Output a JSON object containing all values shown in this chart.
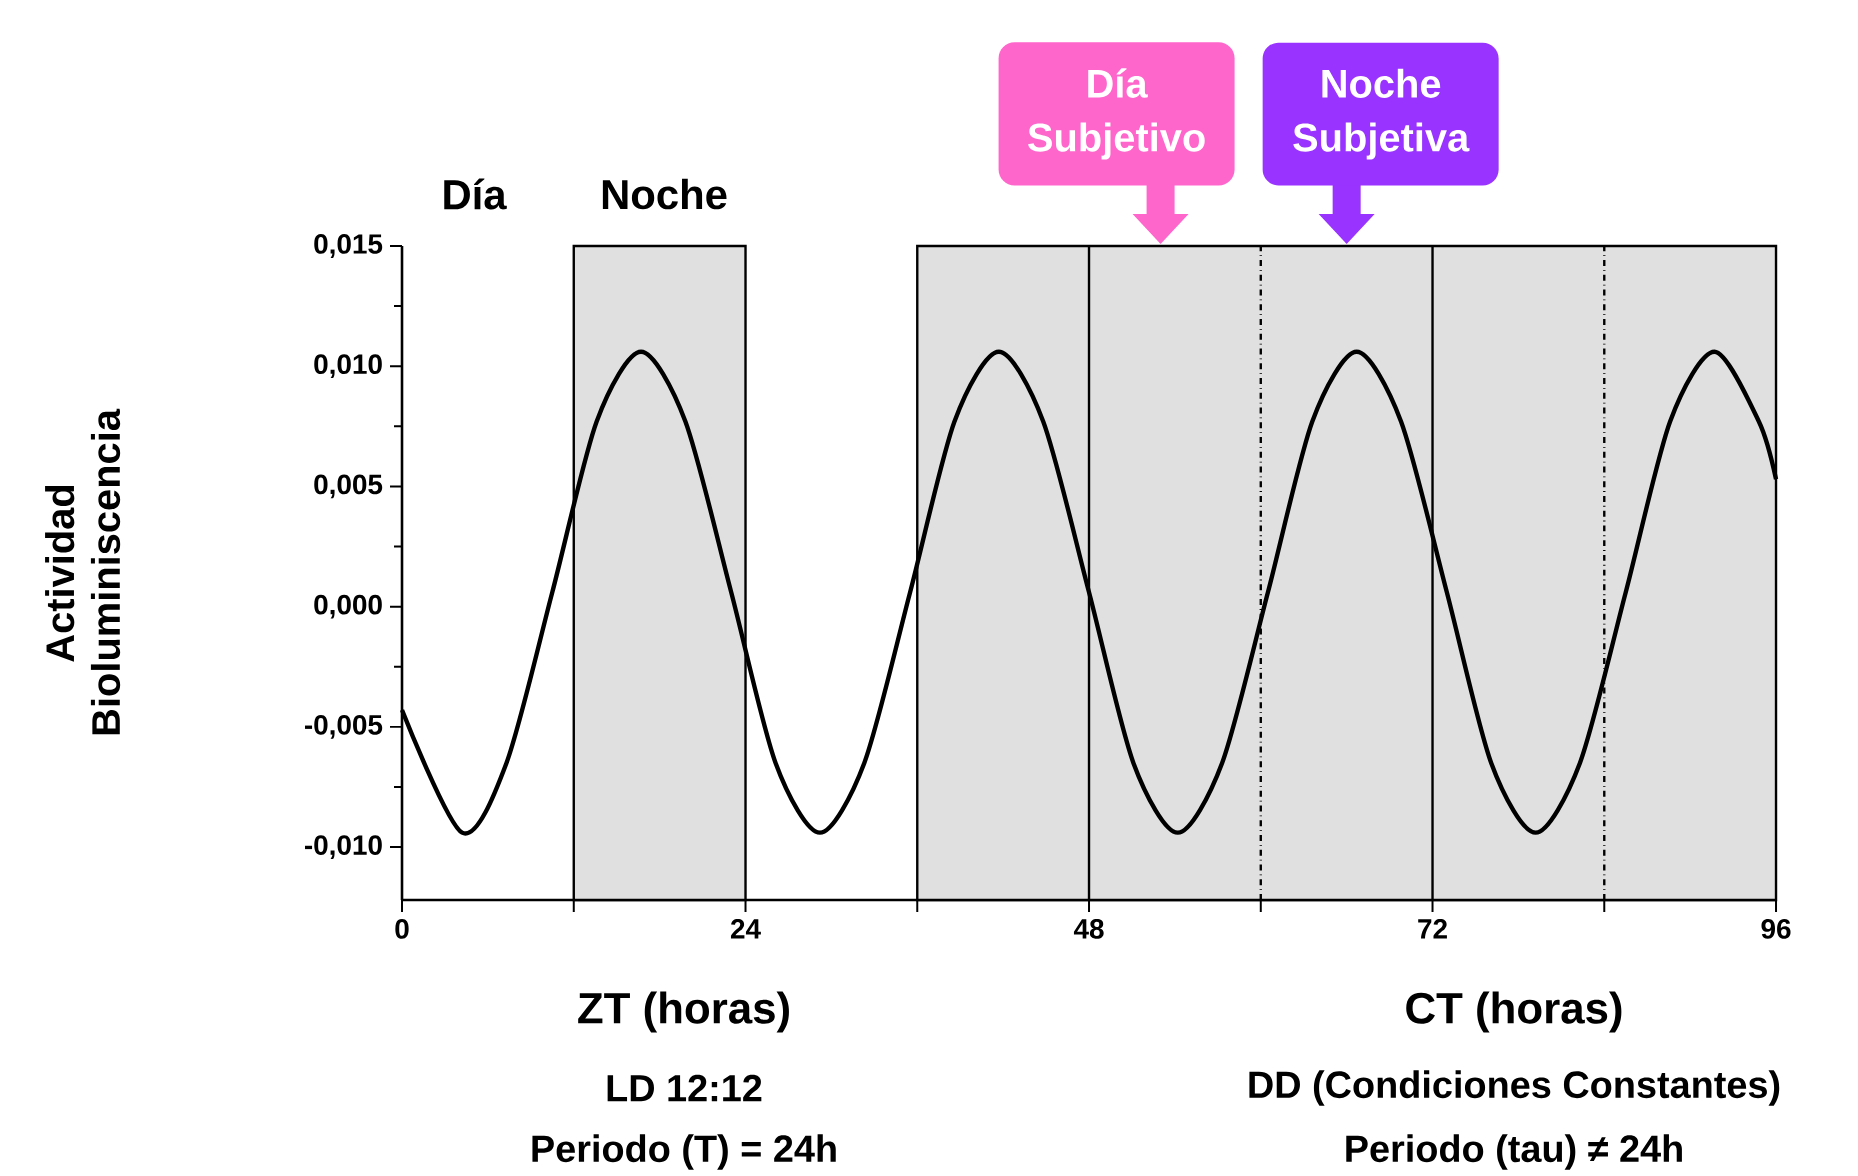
{
  "chart_data": {
    "type": "line",
    "ylabel": "Actividad Bioluminiscencia",
    "x": [
      0,
      4.2,
      7.3,
      10.5,
      13.6,
      16.7,
      19.8,
      23.0,
      26.1,
      29.2,
      32.3,
      35.5,
      38.6,
      41.7,
      44.8,
      48.0,
      51.1,
      54.2,
      57.3,
      60.5,
      63.6,
      66.7,
      69.8,
      73.0,
      76.1,
      79.2,
      82.3,
      85.5,
      88.6,
      91.7,
      94.8,
      96
    ],
    "series": [
      {
        "color": "#000000",
        "values": [
          -0.0043,
          -0.0094,
          -0.0065,
          0.0006,
          0.0077,
          0.0106,
          0.0077,
          0.0006,
          -0.0065,
          -0.0094,
          -0.0065,
          0.0006,
          0.0077,
          0.0106,
          0.0077,
          0.0006,
          -0.0065,
          -0.0094,
          -0.0065,
          0.0006,
          0.0077,
          0.0106,
          0.0077,
          0.0006,
          -0.0065,
          -0.0094,
          -0.0065,
          0.0006,
          0.0077,
          0.0106,
          0.0077,
          0.0053
        ]
      }
    ],
    "xlim": [
      0,
      96
    ],
    "ylim": [
      -0.0122,
      0.015
    ],
    "xticks": [
      0,
      {
        "value": 12,
        "label": null
      },
      24,
      {
        "value": 36,
        "label": null
      },
      48,
      {
        "value": 60,
        "label": null
      },
      72,
      {
        "value": 84,
        "label": null
      },
      96
    ],
    "yticks": [
      {
        "value": -0.01,
        "label": "-0,010"
      },
      {
        "value": -0.005,
        "label": "-0,005"
      },
      {
        "value": 0,
        "label": "0,000"
      },
      {
        "value": 0.005,
        "label": "0,005"
      },
      {
        "value": 0.01,
        "label": "0,010"
      },
      {
        "value": 0.015,
        "label": "0,015"
      }
    ],
    "bands": [
      {
        "axis": "x",
        "from": 12,
        "to": 24,
        "color": "#e0e0e0"
      },
      {
        "axis": "x",
        "from": 36,
        "to": 96,
        "color": "#e0e0e0"
      }
    ],
    "ref_lines": [
      {
        "axis": "x",
        "value": 48,
        "line_style": "solid"
      },
      {
        "axis": "x",
        "value": 72,
        "line_style": "solid"
      },
      {
        "axis": "x",
        "value": 60,
        "line_style": "dashdot"
      },
      {
        "axis": "x",
        "value": 84,
        "line_style": "dashdot"
      }
    ],
    "annotations": [
      "Día",
      "Noche",
      {
        "text": "Día Subjetivo",
        "x": 53,
        "y": 0.015
      },
      {
        "text": "Noche Subjetiva",
        "x": 66,
        "y": 0.015
      },
      "ZT (horas)",
      "LD 12:12",
      "Periodo (T) = 24h",
      "CT (horas)",
      "DD (Condiciones Constantes)",
      "Periodo (tau) ≠ 24h"
    ],
    "line_style": "solid",
    "marker": "none",
    "grid": false
  }
}
